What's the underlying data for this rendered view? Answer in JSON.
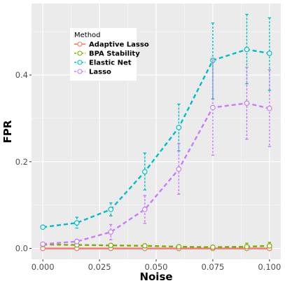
{
  "chart_data": {
    "type": "line",
    "title": "",
    "xlabel": "Noise",
    "ylabel": "FPR",
    "x": [
      0.0,
      0.015,
      0.03,
      0.045,
      0.06,
      0.075,
      0.09,
      0.1
    ],
    "xlim": [
      -0.005,
      0.105
    ],
    "ylim": [
      -0.025,
      0.565
    ],
    "x_ticks": [
      0.0,
      0.025,
      0.05,
      0.075,
      0.1
    ],
    "x_tick_labels": [
      "0.000",
      "0.025",
      "0.050",
      "0.075",
      "0.100"
    ],
    "y_ticks": [
      0.0,
      0.2,
      0.4
    ],
    "y_tick_labels": [
      "0.0",
      "0.2",
      "0.4"
    ],
    "grid": true,
    "legend_title": "Method",
    "legend_position": "top-left",
    "series": [
      {
        "name": "Adaptive Lasso",
        "color": "#F8766D",
        "dash": "solid",
        "values": [
          0.0,
          0.0,
          0.0,
          0.0,
          0.0,
          0.0,
          0.0,
          0.0
        ],
        "err_low": [
          0.0,
          0.0,
          0.0,
          0.0,
          0.0,
          0.0,
          0.0,
          0.0
        ],
        "err_high": [
          0.0,
          0.0,
          0.0,
          0.0,
          0.0,
          0.0,
          0.0,
          0.0
        ]
      },
      {
        "name": "BPA Stability",
        "color": "#7CAE00",
        "dash": "dashed",
        "values": [
          0.009,
          0.008,
          0.007,
          0.006,
          0.004,
          0.003,
          0.004,
          0.006
        ],
        "err_low": [
          0.007,
          0.006,
          0.005,
          0.003,
          0.001,
          0.0,
          0.001,
          0.002
        ],
        "err_high": [
          0.011,
          0.01,
          0.009,
          0.01,
          0.007,
          0.006,
          0.012,
          0.014
        ]
      },
      {
        "name": "Elastic Net",
        "color": "#00BFC4",
        "dash": "dashed",
        "values": [
          0.049,
          0.059,
          0.09,
          0.177,
          0.279,
          0.434,
          0.459,
          0.45
        ],
        "err_low": [
          0.049,
          0.047,
          0.075,
          0.135,
          0.225,
          0.345,
          0.38,
          0.365
        ],
        "err_high": [
          0.049,
          0.072,
          0.105,
          0.22,
          0.333,
          0.52,
          0.54,
          0.532
        ]
      },
      {
        "name": "Lasso",
        "color": "#C77CFF",
        "dash": "dashed",
        "values": [
          0.01,
          0.016,
          0.038,
          0.09,
          0.183,
          0.325,
          0.335,
          0.323
        ],
        "err_low": [
          0.008,
          0.011,
          0.02,
          0.058,
          0.125,
          0.215,
          0.252,
          0.235
        ],
        "err_high": [
          0.012,
          0.021,
          0.055,
          0.122,
          0.242,
          0.435,
          0.418,
          0.412
        ]
      }
    ]
  }
}
